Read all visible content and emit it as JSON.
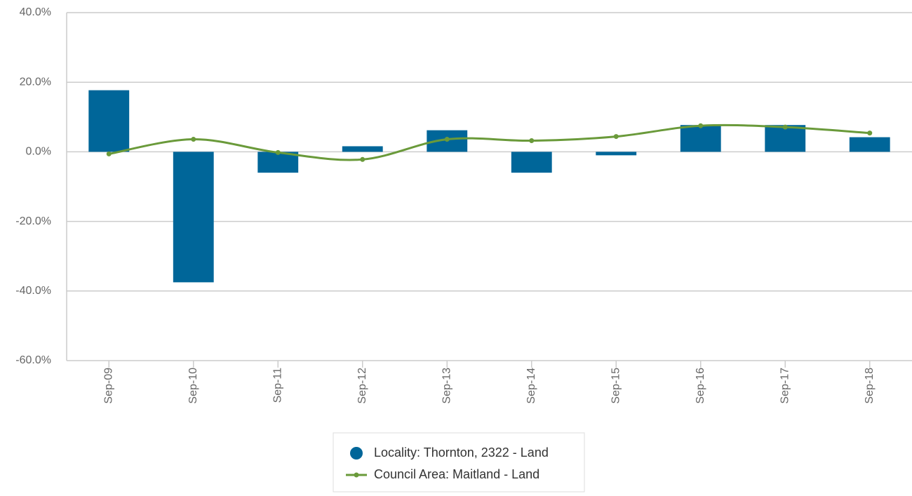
{
  "chart_data": {
    "type": "bar_line",
    "categories": [
      "Sep-09",
      "Sep-10",
      "Sep-11",
      "Sep-12",
      "Sep-13",
      "Sep-14",
      "Sep-15",
      "Sep-16",
      "Sep-17",
      "Sep-18"
    ],
    "series": [
      {
        "name": "Locality: Thornton, 2322 - Land",
        "type": "bar",
        "color": "#006699",
        "values": [
          17.7,
          -37.5,
          -6.0,
          1.6,
          6.2,
          -6.0,
          -1.0,
          7.7,
          7.7,
          4.2
        ]
      },
      {
        "name": "Council Area: Maitland - Land",
        "type": "line",
        "color": "#6a9a3a",
        "values": [
          -0.6,
          3.6,
          -0.2,
          -2.2,
          3.6,
          3.2,
          4.4,
          7.5,
          7.1,
          5.4
        ]
      }
    ],
    "ylim": [
      -60,
      40
    ],
    "yticks": [
      {
        "value": 40,
        "label": "40.0%"
      },
      {
        "value": 20,
        "label": "20.0%"
      },
      {
        "value": 0,
        "label": "0.0%"
      },
      {
        "value": -20,
        "label": "-20.0%"
      },
      {
        "value": -40,
        "label": "-40.0%"
      },
      {
        "value": -60,
        "label": "-60.0%"
      }
    ],
    "grid": true,
    "legend": "bottom"
  }
}
